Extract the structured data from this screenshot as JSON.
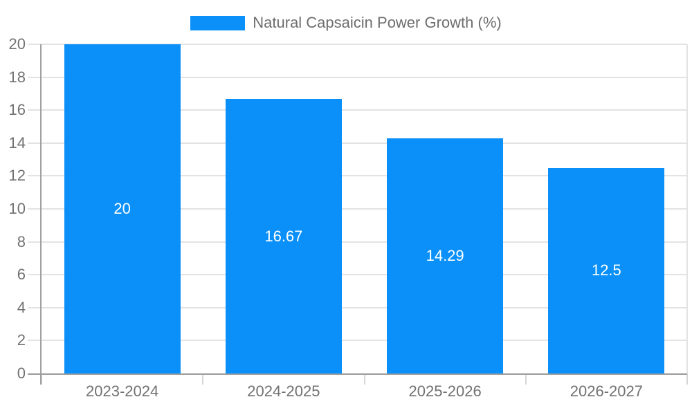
{
  "legend": {
    "label": "Natural Capsaicin Power Growth (%)"
  },
  "colors": {
    "bar": "#0a90f8",
    "bar_label": "#ffffff",
    "grid": "#e3e3e3",
    "boundary_tick": "#d6d6d6",
    "axis": "#a0a0a0",
    "tick_label": "#717171",
    "legend_text": "#6e6e6e",
    "background": "#ffffff"
  },
  "chart_data": {
    "type": "bar",
    "title": "",
    "series_name": "Natural Capsaicin Power Growth (%)",
    "categories": [
      "2023-2024",
      "2024-2025",
      "2025-2026",
      "2026-2027"
    ],
    "values": [
      20,
      16.67,
      14.29,
      12.5
    ],
    "value_labels": [
      "20",
      "16.67",
      "14.29",
      "12.5"
    ],
    "xlabel": "",
    "ylabel": "",
    "ylim": [
      0,
      20
    ],
    "ytick_step": 2,
    "yticks": [
      0,
      2,
      4,
      6,
      8,
      10,
      12,
      14,
      16,
      18,
      20
    ],
    "grid": true,
    "legend_position": "top",
    "bar_label_position": "inside-center"
  }
}
